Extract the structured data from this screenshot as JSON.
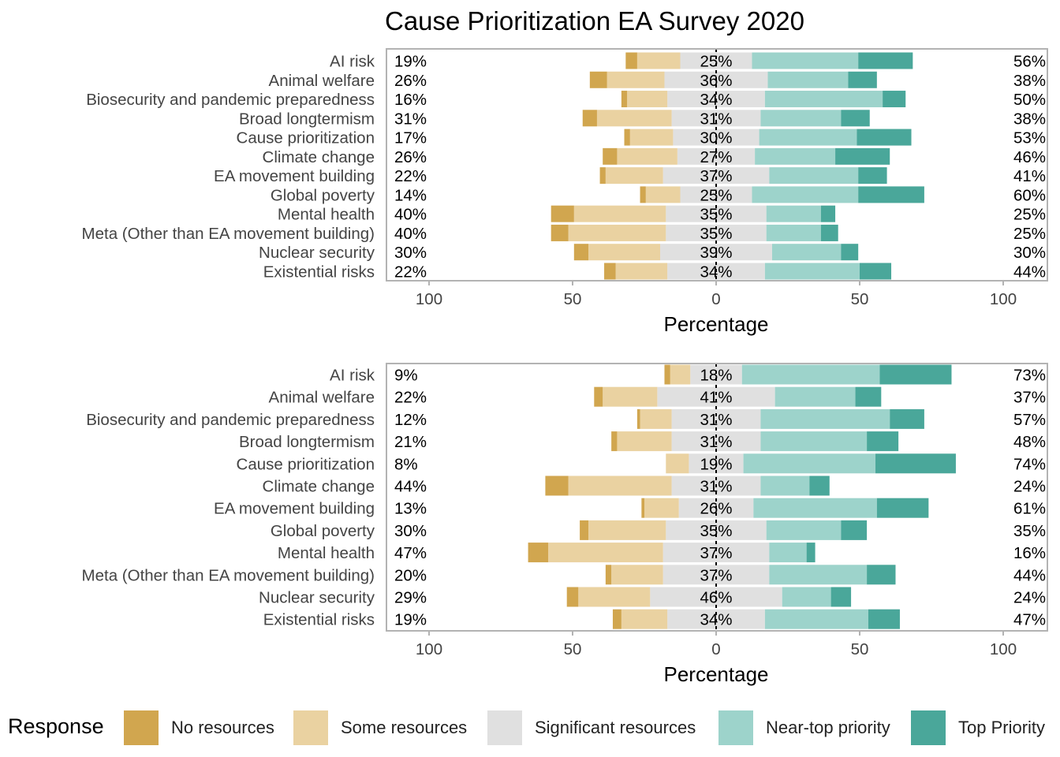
{
  "title": "Cause Prioritization EA Survey 2020",
  "colors": {
    "No resources": "#d1a64f",
    "Some resources": "#ead2a1",
    "Significant resources": "#e0e0e0",
    "Near-top priority": "#9dd3cb",
    "Top Priority": "#4aa79a"
  },
  "legend": {
    "title": "Response",
    "items": [
      "No resources",
      "Some resources",
      "Significant resources",
      "Near-top priority",
      "Top Priority"
    ]
  },
  "chart_data": [
    {
      "type": "bar",
      "orientation": "horizontal diverging stacked",
      "xlabel": "Percentage",
      "xlim": [
        -100,
        100
      ],
      "xticks": [
        -100,
        -50,
        0,
        50,
        100
      ],
      "xtick_labels": [
        "100",
        "50",
        "0",
        "50",
        "100"
      ],
      "categories": [
        "AI risk",
        "Animal welfare",
        "Biosecurity and pandemic preparedness",
        "Broad longtermism",
        "Cause prioritization",
        "Climate change",
        "EA movement building",
        "Global poverty",
        "Mental health",
        "Meta (Other than EA movement building)",
        "Nuclear security",
        "Existential risks"
      ],
      "series": [
        {
          "name": "No resources",
          "values": [
            4,
            6,
            2,
            5,
            2,
            5,
            2,
            2,
            8,
            6,
            5,
            4
          ]
        },
        {
          "name": "Some resources",
          "values": [
            15,
            20,
            14,
            26,
            15,
            21,
            20,
            12,
            32,
            34,
            25,
            18
          ]
        },
        {
          "name": "Significant resources",
          "values": [
            25,
            36,
            34,
            31,
            30,
            27,
            37,
            25,
            35,
            35,
            39,
            34
          ]
        },
        {
          "name": "Near-top priority",
          "values": [
            37,
            28,
            41,
            28,
            34,
            28,
            31,
            37,
            19,
            19,
            24,
            33
          ]
        },
        {
          "name": "Top Priority",
          "values": [
            19,
            10,
            8,
            10,
            19,
            19,
            10,
            23,
            5,
            6,
            6,
            11
          ]
        }
      ],
      "left_labels": [
        "19%",
        "26%",
        "16%",
        "31%",
        "17%",
        "26%",
        "22%",
        "14%",
        "40%",
        "40%",
        "30%",
        "22%"
      ],
      "center_labels": [
        "25%",
        "36%",
        "34%",
        "31%",
        "30%",
        "27%",
        "37%",
        "25%",
        "35%",
        "35%",
        "39%",
        "34%"
      ],
      "right_labels": [
        "56%",
        "38%",
        "50%",
        "38%",
        "53%",
        "46%",
        "41%",
        "60%",
        "25%",
        "25%",
        "30%",
        "44%"
      ]
    },
    {
      "type": "bar",
      "orientation": "horizontal diverging stacked",
      "xlabel": "Percentage",
      "xlim": [
        -100,
        100
      ],
      "xticks": [
        -100,
        -50,
        0,
        50,
        100
      ],
      "xtick_labels": [
        "100",
        "50",
        "0",
        "50",
        "100"
      ],
      "categories": [
        "AI risk",
        "Animal welfare",
        "Biosecurity and pandemic preparedness",
        "Broad longtermism",
        "Cause prioritization",
        "Climate change",
        "EA movement building",
        "Global poverty",
        "Mental health",
        "Meta (Other than EA movement building)",
        "Nuclear security",
        "Existential risks"
      ],
      "series": [
        {
          "name": "No resources",
          "values": [
            2,
            3,
            1,
            2,
            0,
            8,
            1,
            3,
            7,
            2,
            4,
            3
          ]
        },
        {
          "name": "Some resources",
          "values": [
            7,
            19,
            11,
            19,
            8,
            36,
            12,
            27,
            40,
            18,
            25,
            16
          ]
        },
        {
          "name": "Significant resources",
          "values": [
            18,
            41,
            31,
            31,
            19,
            31,
            26,
            35,
            37,
            37,
            46,
            34
          ]
        },
        {
          "name": "Near-top priority",
          "values": [
            48,
            28,
            45,
            37,
            46,
            17,
            43,
            26,
            13,
            34,
            17,
            36
          ]
        },
        {
          "name": "Top Priority",
          "values": [
            25,
            9,
            12,
            11,
            28,
            7,
            18,
            9,
            3,
            10,
            7,
            11
          ]
        }
      ],
      "left_labels": [
        "9%",
        "22%",
        "12%",
        "21%",
        "8%",
        "44%",
        "13%",
        "30%",
        "47%",
        "20%",
        "29%",
        "19%"
      ],
      "center_labels": [
        "18%",
        "41%",
        "31%",
        "31%",
        "19%",
        "31%",
        "26%",
        "35%",
        "37%",
        "37%",
        "46%",
        "34%"
      ],
      "right_labels": [
        "73%",
        "37%",
        "57%",
        "48%",
        "74%",
        "24%",
        "61%",
        "35%",
        "16%",
        "44%",
        "24%",
        "47%"
      ]
    }
  ]
}
